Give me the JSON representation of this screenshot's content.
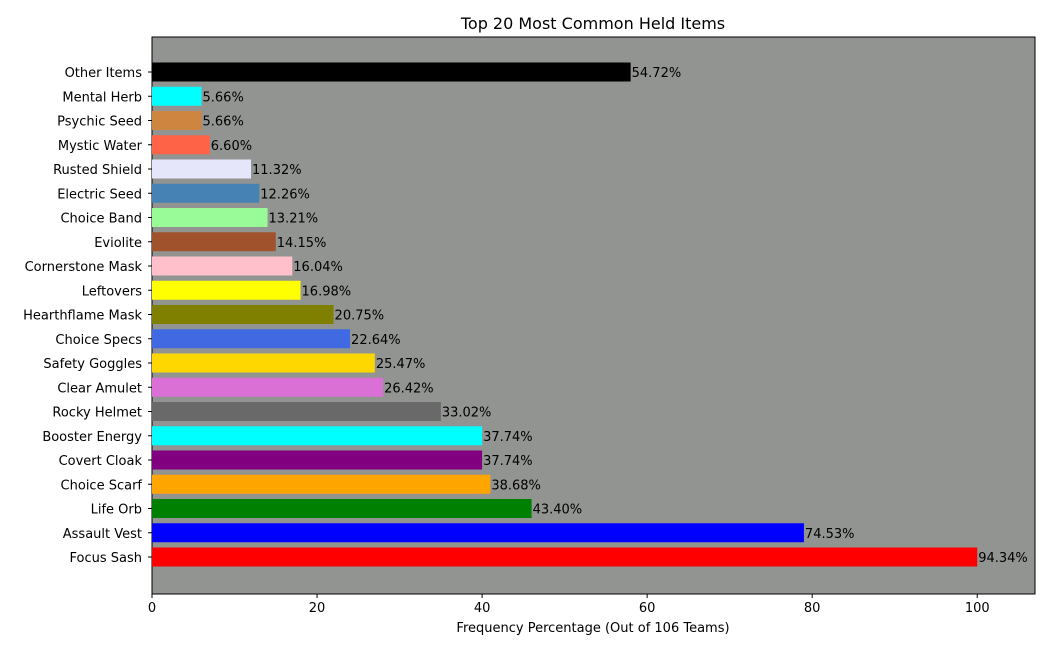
{
  "chart_data": {
    "type": "bar",
    "orientation": "horizontal",
    "title": "Top 20 Most Common Held Items",
    "xlabel": "Frequency Percentage (Out of 106 Teams)",
    "ylabel": "",
    "xlim": [
      0,
      107
    ],
    "x_ticks": [
      0,
      20,
      40,
      60,
      80,
      100
    ],
    "grid": false,
    "plot_background": "#929491",
    "categories": [
      "Focus Sash",
      "Assault Vest",
      "Life Orb",
      "Choice Scarf",
      "Covert Cloak",
      "Booster Energy",
      "Rocky Helmet",
      "Clear Amulet",
      "Safety Goggles",
      "Choice Specs",
      "Hearthflame Mask",
      "Leftovers",
      "Cornerstone Mask",
      "Eviolite",
      "Choice Band",
      "Electric Seed",
      "Rusted Shield",
      "Mystic Water",
      "Psychic Seed",
      "Mental Herb",
      "Other Items"
    ],
    "values": [
      100,
      79,
      46,
      41,
      40,
      40,
      35,
      28,
      27,
      24,
      22,
      18,
      17,
      15,
      14,
      13,
      12,
      7,
      6,
      6,
      58
    ],
    "value_labels": [
      "94.34%",
      "74.53%",
      "43.40%",
      "38.68%",
      "37.74%",
      "37.74%",
      "33.02%",
      "26.42%",
      "25.47%",
      "22.64%",
      "20.75%",
      "16.98%",
      "16.04%",
      "14.15%",
      "13.21%",
      "12.26%",
      "11.32%",
      "6.60%",
      "5.66%",
      "5.66%",
      "54.72%"
    ],
    "colors": [
      "#ff0000",
      "#0000ff",
      "#008000",
      "#ffa500",
      "#800080",
      "#00ffff",
      "#696969",
      "#da70d6",
      "#ffd700",
      "#4169e1",
      "#808000",
      "#ffff00",
      "#ffc0cb",
      "#a0522d",
      "#98fb98",
      "#4682b4",
      "#e6e6fa",
      "#ff6347",
      "#cd853f",
      "#00ffff",
      "#000000"
    ]
  }
}
